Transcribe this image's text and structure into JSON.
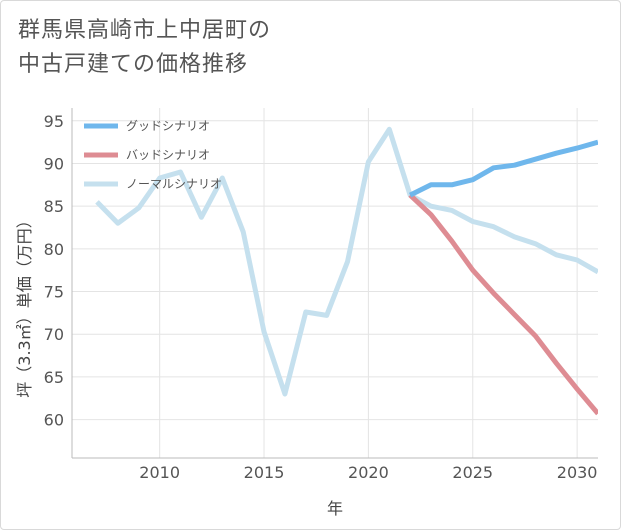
{
  "title": {
    "line1": "群馬県高崎市上中居町の",
    "line2": "中古戸建ての価格推移"
  },
  "chart_data": {
    "type": "line",
    "title": "群馬県高崎市上中居町の中古戸建ての価格推移",
    "xlabel": "年",
    "ylabel": "坪（3.3㎡）単価（万円）",
    "xlim": [
      2005.8,
      2031
    ],
    "ylim": [
      55.5,
      96.5
    ],
    "xticks": [
      2010,
      2015,
      2020,
      2025,
      2030
    ],
    "yticks": [
      60,
      65,
      70,
      75,
      80,
      85,
      90,
      95
    ],
    "grid": true,
    "legend_position": "top-left",
    "series": [
      {
        "name": "ノーマルシナリオ",
        "color": "#c5e0ee",
        "x": [
          2007,
          2008,
          2009,
          2010,
          2011,
          2012,
          2013,
          2014,
          2015,
          2016,
          2017,
          2018,
          2019,
          2020,
          2021,
          2022,
          2023,
          2024,
          2025,
          2026,
          2027,
          2028,
          2029,
          2030,
          2031
        ],
        "values": [
          85.5,
          83.0,
          84.8,
          88.3,
          89.0,
          83.7,
          88.3,
          82.0,
          70.3,
          63.0,
          72.6,
          72.2,
          78.5,
          90.2,
          94.0,
          86.3,
          85.0,
          84.5,
          83.2,
          82.6,
          81.4,
          80.6,
          79.3,
          78.7,
          77.3
        ]
      },
      {
        "name": "バッドシナリオ",
        "color": "#de8c93",
        "x": [
          2022,
          2023,
          2024,
          2025,
          2026,
          2027,
          2028,
          2029,
          2030,
          2031
        ],
        "values": [
          86.3,
          84.0,
          80.9,
          77.5,
          74.8,
          72.3,
          69.8,
          66.6,
          63.6,
          60.7
        ]
      },
      {
        "name": "グッドシナリオ",
        "color": "#6fb7ec",
        "x": [
          2022,
          2023,
          2024,
          2025,
          2026,
          2027,
          2028,
          2029,
          2030,
          2031
        ],
        "values": [
          86.3,
          87.5,
          87.5,
          88.1,
          89.5,
          89.8,
          90.5,
          91.2,
          91.8,
          92.5
        ]
      }
    ],
    "legend": [
      "グッドシナリオ",
      "バッドシナリオ",
      "ノーマルシナリオ"
    ]
  }
}
